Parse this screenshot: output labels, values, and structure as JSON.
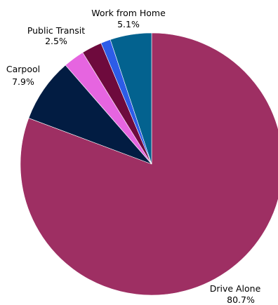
{
  "chart_data": {
    "type": "pie",
    "title": "",
    "start_angle_deg": 90,
    "direction": "clockwise",
    "slices": [
      {
        "label": "Drive Alone",
        "value": 80.7,
        "value_label": "80.7%",
        "color": "#9e2f63",
        "show_label": true
      },
      {
        "label": "Carpool",
        "value": 7.9,
        "value_label": "7.9%",
        "color": "#021c42",
        "show_label": true
      },
      {
        "label": "",
        "value": 2.6,
        "value_label": "",
        "color": "#e665e0",
        "show_label": false
      },
      {
        "label": "Public Transit",
        "value": 2.5,
        "value_label": "2.5%",
        "color": "#6e0a3d",
        "show_label": true
      },
      {
        "label": "",
        "value": 1.2,
        "value_label": "",
        "color": "#2d5ce8",
        "show_label": false
      },
      {
        "label": "Work from Home",
        "value": 5.1,
        "value_label": "5.1%",
        "color": "#03628f",
        "show_label": true
      }
    ]
  }
}
